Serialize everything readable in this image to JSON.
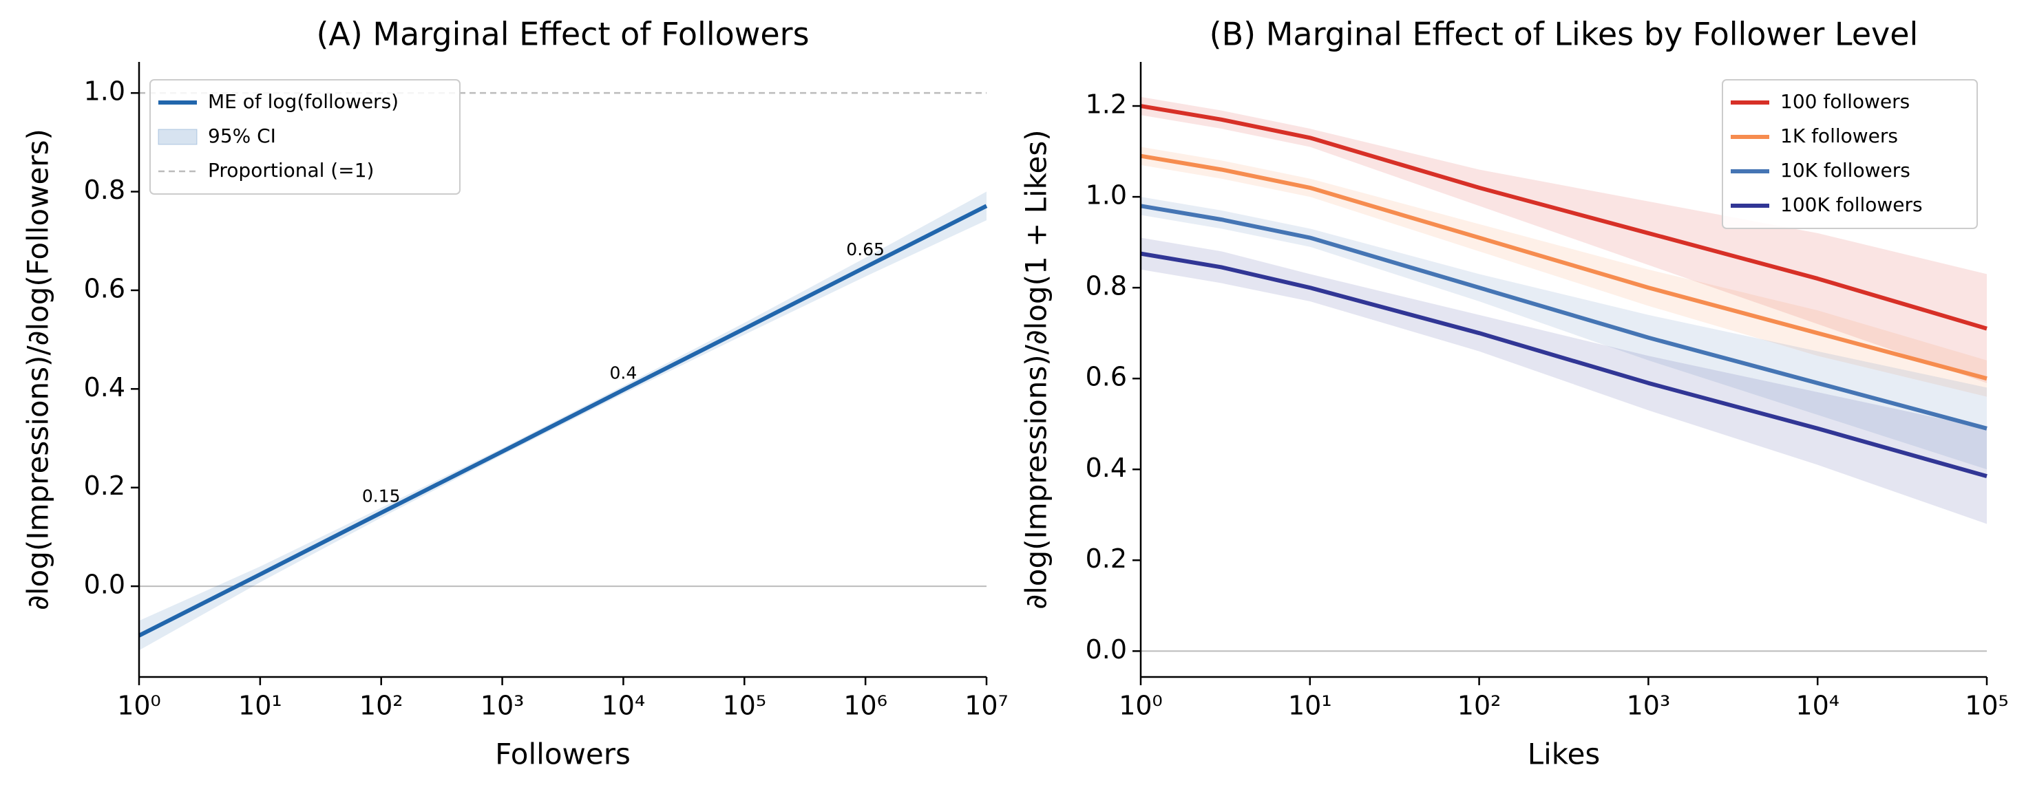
{
  "chart_data": [
    {
      "type": "line",
      "title": "(A) Marginal Effect of Followers",
      "xlabel": "Followers",
      "ylabel": "∂log(Impressions)/∂log(Followers)",
      "xscale": "log",
      "xlim": [
        1,
        10000000
      ],
      "xticks": [
        {
          "value": 1,
          "label": "10⁰"
        },
        {
          "value": 10,
          "label": "10¹"
        },
        {
          "value": 100,
          "label": "10²"
        },
        {
          "value": 1000,
          "label": "10³"
        },
        {
          "value": 10000,
          "label": "10⁴"
        },
        {
          "value": 100000,
          "label": "10⁵"
        },
        {
          "value": 1000000,
          "label": "10⁶"
        },
        {
          "value": 10000000,
          "label": "10⁷"
        }
      ],
      "ylim": [
        -0.184,
        1.063
      ],
      "yticks": [
        {
          "value": 0,
          "label": "0.0"
        },
        0.2,
        0.4,
        0.6,
        0.8,
        {
          "value": 1,
          "label": "1.0"
        }
      ],
      "x": [
        1,
        10,
        100,
        1000,
        10000,
        100000,
        1000000,
        10000000
      ],
      "series": [
        {
          "name": "ME of log(followers)",
          "color": "#2166ac",
          "values": [
            -0.1,
            0.024,
            0.149,
            0.273,
            0.398,
            0.522,
            0.647,
            0.771
          ],
          "ci_name": "95% CI",
          "ci_lower": [
            -0.13,
            0.008,
            0.139,
            0.266,
            0.39,
            0.51,
            0.628,
            0.742
          ],
          "ci_upper": [
            -0.07,
            0.04,
            0.159,
            0.28,
            0.406,
            0.534,
            0.666,
            0.8
          ]
        }
      ],
      "reference_line": {
        "value": 1,
        "label": "Proportional (=1)"
      },
      "annotations": [
        {
          "x": 100,
          "value": 0.15
        },
        {
          "x": 10000,
          "value": 0.4
        },
        {
          "x": 1000000,
          "value": 0.65
        }
      ],
      "legend": "upper left"
    },
    {
      "type": "line",
      "title": "(B) Marginal Effect of Likes by Follower Level",
      "xlabel": "Likes",
      "ylabel": "∂log(Impressions)/∂log(1 + Likes)",
      "xscale": "log",
      "xlim": [
        1,
        100000
      ],
      "xticks": [
        {
          "value": 1,
          "label": "10⁰"
        },
        {
          "value": 10,
          "label": "10¹"
        },
        {
          "value": 100,
          "label": "10²"
        },
        {
          "value": 1000,
          "label": "10³"
        },
        {
          "value": 10000,
          "label": "10⁴"
        },
        {
          "value": 100000,
          "label": "10⁵"
        }
      ],
      "ylim": [
        -0.057,
        1.297
      ],
      "yticks": [
        {
          "value": 0,
          "label": "0.0"
        },
        0.2,
        0.4,
        0.6,
        0.8,
        {
          "value": 1,
          "label": "1.0"
        },
        1.2
      ],
      "x": [
        1,
        3,
        10,
        100,
        1000,
        10000,
        100000
      ],
      "series": [
        {
          "name": "100 followers",
          "color": "#d73027",
          "values": [
            1.2,
            1.17,
            1.13,
            1.02,
            0.92,
            0.82,
            0.71
          ],
          "ci_lower": [
            1.18,
            1.15,
            1.11,
            0.98,
            0.85,
            0.72,
            0.59
          ],
          "ci_upper": [
            1.22,
            1.19,
            1.15,
            1.06,
            0.99,
            0.92,
            0.83
          ]
        },
        {
          "name": "1K followers",
          "color": "#f68c4f",
          "values": [
            1.09,
            1.06,
            1.02,
            0.91,
            0.8,
            0.7,
            0.6
          ],
          "ci_lower": [
            1.07,
            1.04,
            1.0,
            0.88,
            0.76,
            0.65,
            0.56
          ],
          "ci_upper": [
            1.11,
            1.08,
            1.04,
            0.94,
            0.84,
            0.75,
            0.64
          ]
        },
        {
          "name": "10K followers",
          "color": "#4575b4",
          "values": [
            0.98,
            0.95,
            0.91,
            0.8,
            0.69,
            0.59,
            0.49
          ],
          "ci_lower": [
            0.96,
            0.93,
            0.89,
            0.77,
            0.64,
            0.52,
            0.4
          ],
          "ci_upper": [
            1.0,
            0.97,
            0.93,
            0.83,
            0.74,
            0.66,
            0.58
          ]
        },
        {
          "name": "100K followers",
          "color": "#313695",
          "values": [
            0.875,
            0.845,
            0.8,
            0.7,
            0.59,
            0.49,
            0.385
          ],
          "ci_lower": [
            0.84,
            0.81,
            0.77,
            0.66,
            0.53,
            0.41,
            0.28
          ],
          "ci_upper": [
            0.91,
            0.88,
            0.83,
            0.74,
            0.65,
            0.57,
            0.49
          ]
        }
      ],
      "legend": "upper right"
    }
  ]
}
